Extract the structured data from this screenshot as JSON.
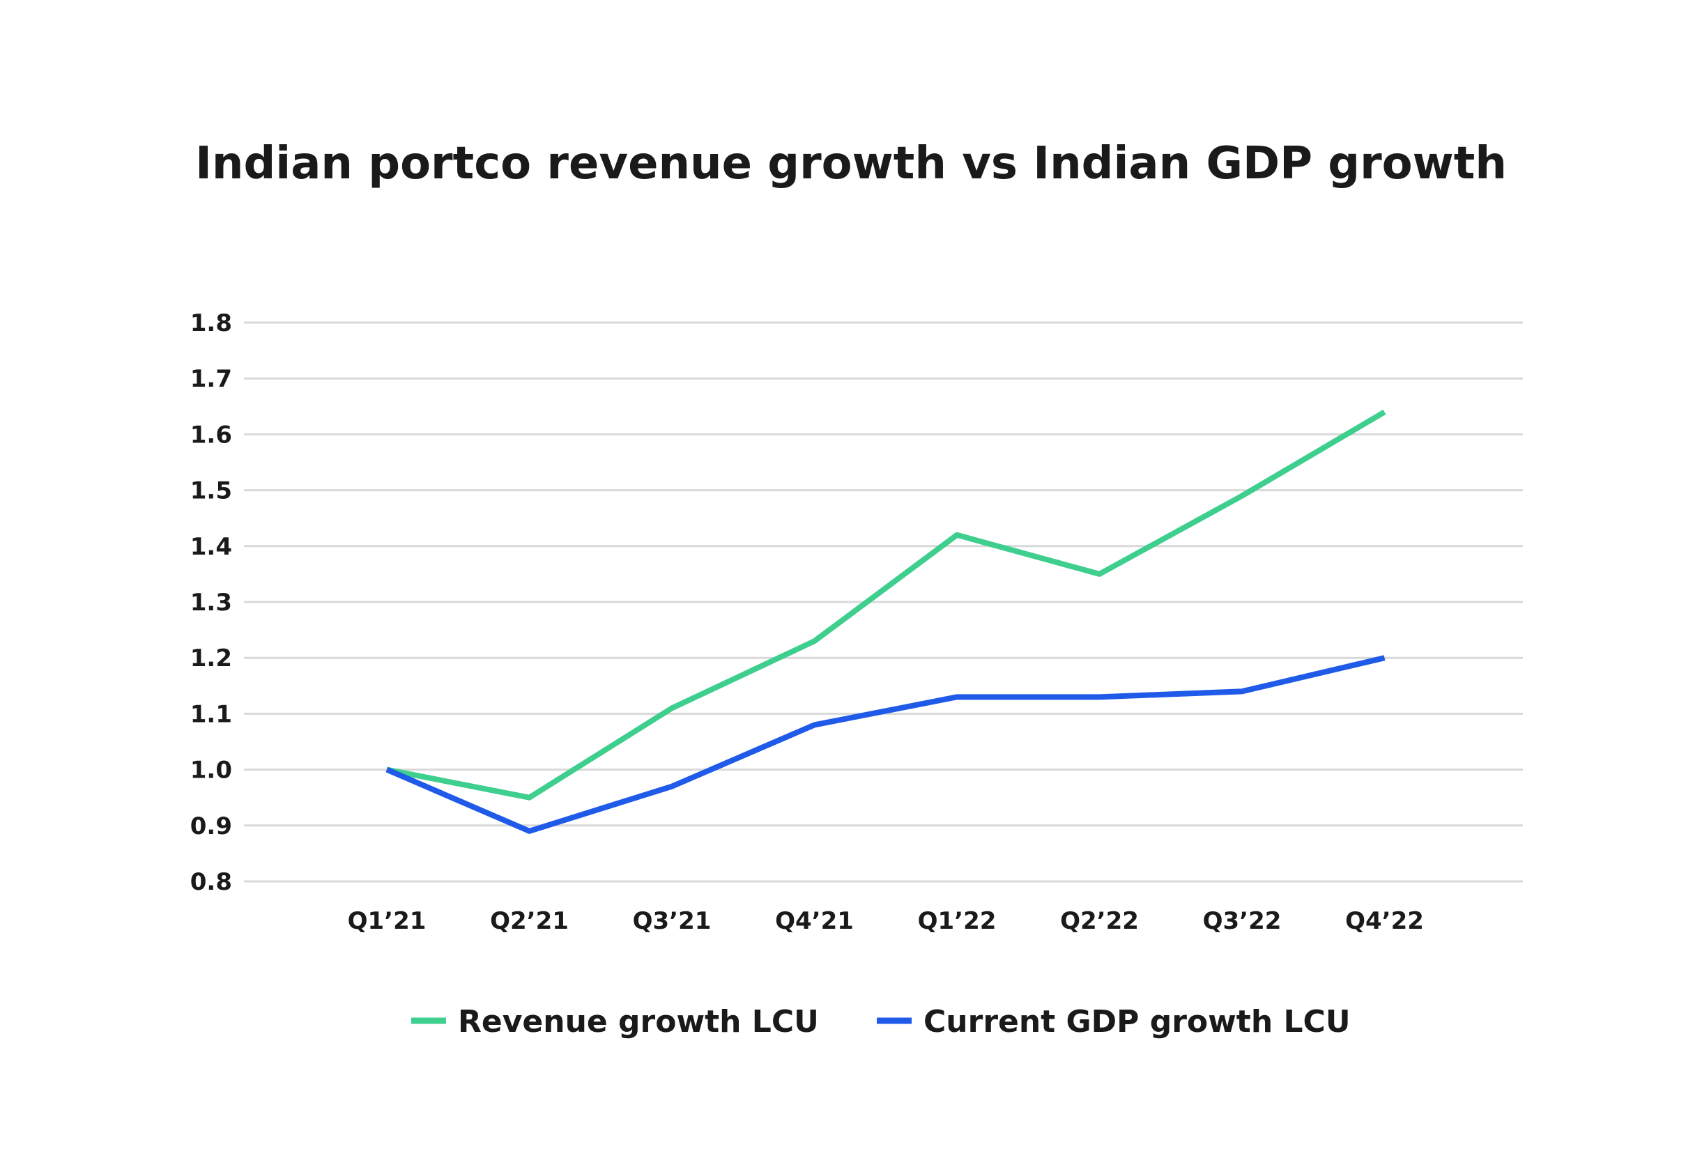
{
  "chart_data": {
    "type": "line",
    "title": "Indian portco revenue growth vs Indian GDP growth",
    "xlabel": "",
    "ylabel": "",
    "categories": [
      "Q1’21",
      "Q2’21",
      "Q3’21",
      "Q4’21",
      "Q1’22",
      "Q2’22",
      "Q3’22",
      "Q4’22"
    ],
    "yticks": [
      "0.8",
      "0.9",
      "1.0",
      "1.1",
      "1.2",
      "1.3",
      "1.4",
      "1.5",
      "1.6",
      "1.7",
      "1.8"
    ],
    "ylim": [
      0.8,
      1.8
    ],
    "grid": true,
    "legend_position": "bottom",
    "series": [
      {
        "name": "Revenue growth LCU",
        "color": "#3ecf8e",
        "values": [
          1.0,
          0.95,
          1.11,
          1.23,
          1.42,
          1.35,
          1.49,
          1.64
        ]
      },
      {
        "name": "Current GDP growth LCU",
        "color": "#1f5ae8",
        "values": [
          1.0,
          0.89,
          0.97,
          1.08,
          1.13,
          1.13,
          1.14,
          1.2
        ]
      }
    ]
  }
}
